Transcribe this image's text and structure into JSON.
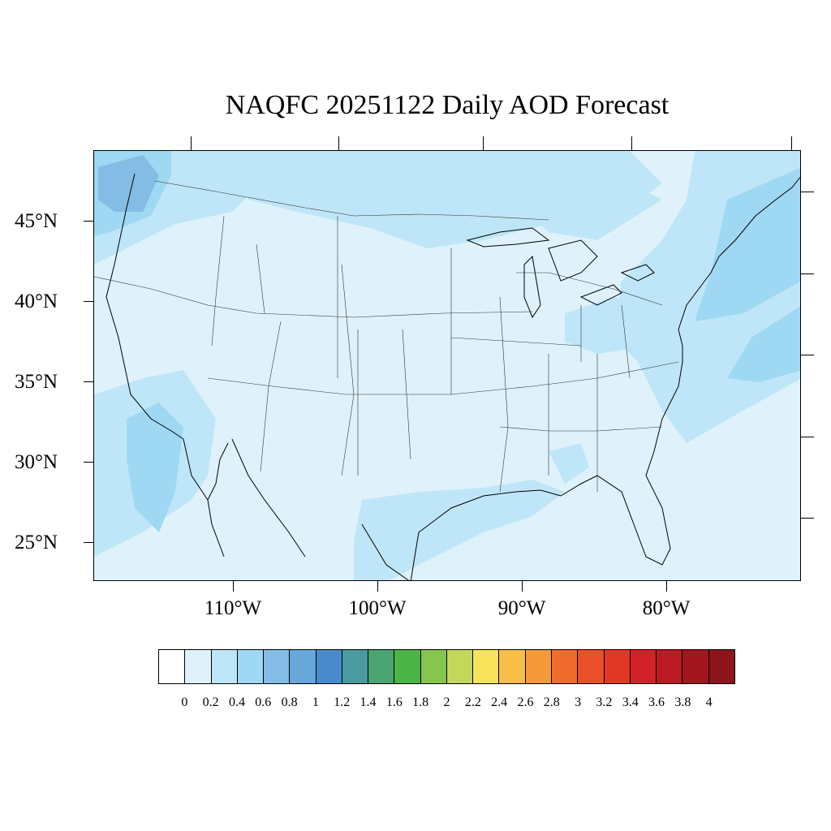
{
  "title": "NAQFC 20251122 Daily AOD Forecast",
  "map": {
    "extent": {
      "lon_min": -119,
      "lon_max": -70,
      "lat_min": 22.7,
      "lat_max": 49.2
    },
    "lat_labels": [
      "45°N",
      "40°N",
      "35°N",
      "30°N",
      "25°N"
    ],
    "lat_values": [
      45,
      40,
      35,
      30,
      25
    ],
    "lon_labels": [
      "110°W",
      "100°W",
      "90°W",
      "80°W"
    ],
    "lon_values": [
      -110,
      -100,
      -90,
      -80
    ],
    "background_level": "0.2"
  },
  "colorbar": {
    "labels": [
      "0",
      "0.2",
      "0.4",
      "0.6",
      "0.8",
      "1",
      "1.2",
      "1.4",
      "1.6",
      "1.8",
      "2",
      "2.2",
      "2.4",
      "2.6",
      "2.8",
      "3",
      "3.2",
      "3.4",
      "3.6",
      "3.8",
      "4"
    ],
    "colors": [
      "#ffffff",
      "#dff2fb",
      "#bfe6f8",
      "#9fd8f3",
      "#83bde6",
      "#66a7dc",
      "#4a8acb",
      "#4b9aa1",
      "#4aa572",
      "#4bb446",
      "#86c54e",
      "#c3d859",
      "#f7e45b",
      "#f8bf48",
      "#f59a3b",
      "#f16c2c",
      "#ea5129",
      "#e13826",
      "#d32128",
      "#bc1a22",
      "#a3161f",
      "#8d141b"
    ]
  }
}
